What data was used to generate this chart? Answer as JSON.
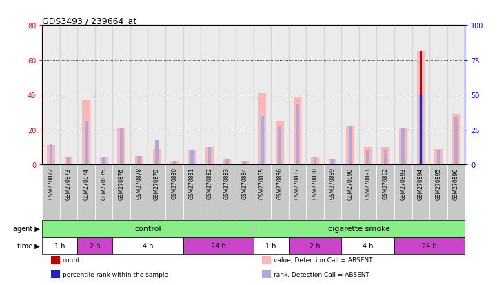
{
  "title": "GDS3493 / 239664_at",
  "samples": [
    "GSM270872",
    "GSM270873",
    "GSM270874",
    "GSM270875",
    "GSM270876",
    "GSM270878",
    "GSM270879",
    "GSM270880",
    "GSM270881",
    "GSM270882",
    "GSM270883",
    "GSM270884",
    "GSM270885",
    "GSM270886",
    "GSM270887",
    "GSM270888",
    "GSM270889",
    "GSM270890",
    "GSM270891",
    "GSM270892",
    "GSM270893",
    "GSM270894",
    "GSM270895",
    "GSM270896"
  ],
  "pink_values": [
    11,
    4,
    37,
    4,
    21,
    5,
    9,
    2,
    8,
    10,
    3,
    2,
    41,
    25,
    39,
    4,
    3,
    22,
    10,
    10,
    21,
    65,
    9,
    29
  ],
  "blue_rank_values": [
    12,
    4,
    25,
    4,
    21,
    5,
    14,
    2,
    8,
    10,
    3,
    2,
    28,
    22,
    35,
    4,
    3,
    22,
    8,
    8,
    21,
    40,
    8,
    27
  ],
  "red_count_values": [
    0,
    0,
    0,
    0,
    0,
    0,
    0,
    0,
    0,
    0,
    0,
    0,
    0,
    0,
    0,
    0,
    0,
    0,
    0,
    0,
    0,
    65,
    0,
    0
  ],
  "blue_dot_values": [
    0,
    0,
    0,
    0,
    0,
    0,
    0,
    0,
    0,
    0,
    0,
    0,
    0,
    0,
    0,
    0,
    0,
    0,
    0,
    0,
    0,
    40,
    0,
    0
  ],
  "ylim_left": [
    0,
    80
  ],
  "ylim_right": [
    0,
    100
  ],
  "yticks_left": [
    0,
    20,
    40,
    60,
    80
  ],
  "yticks_right": [
    0,
    25,
    50,
    75,
    100
  ],
  "agent_control_label": "control",
  "agent_smoke_label": "cigarette smoke",
  "agent_label": "agent",
  "time_label": "time",
  "time_groups_control": [
    {
      "label": "1 h",
      "start": 0,
      "end": 2
    },
    {
      "label": "2 h",
      "start": 2,
      "end": 4
    },
    {
      "label": "4 h",
      "start": 4,
      "end": 8
    },
    {
      "label": "24 h",
      "start": 8,
      "end": 12
    }
  ],
  "time_groups_smoke": [
    {
      "label": "1 h",
      "start": 12,
      "end": 14
    },
    {
      "label": "2 h",
      "start": 14,
      "end": 17
    },
    {
      "label": "4 h",
      "start": 17,
      "end": 20
    },
    {
      "label": "24 h",
      "start": 20,
      "end": 24
    }
  ],
  "time_colors_control": [
    "#ffffff",
    "#CC44CC",
    "#ffffff",
    "#CC44CC"
  ],
  "time_colors_smoke": [
    "#ffffff",
    "#CC44CC",
    "#ffffff",
    "#CC44CC"
  ],
  "pink_color": "#FFB6B6",
  "blue_color": "#AAAADD",
  "red_color": "#BB0000",
  "dark_blue_color": "#2222BB",
  "green_color": "#88EE88",
  "gray_color": "#C8C8C8",
  "legend_items": [
    {
      "label": "count",
      "color": "#BB0000"
    },
    {
      "label": "percentile rank within the sample",
      "color": "#2222BB"
    },
    {
      "label": "value, Detection Call = ABSENT",
      "color": "#FFB6B6"
    },
    {
      "label": "rank, Detection Call = ABSENT",
      "color": "#AAAADD"
    }
  ]
}
